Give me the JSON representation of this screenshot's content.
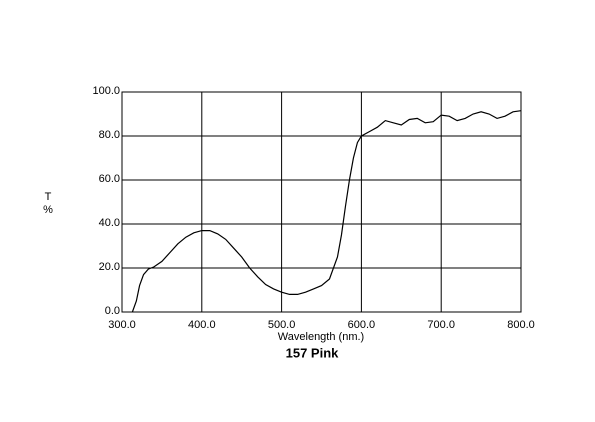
{
  "chart_data": {
    "type": "line",
    "title": "157 Pink",
    "x_label": "Wavelength (nm.)",
    "y_label": [
      "T",
      "%"
    ],
    "x": [
      313,
      318,
      322,
      327,
      333,
      340,
      350,
      360,
      370,
      380,
      390,
      400,
      410,
      420,
      430,
      440,
      450,
      460,
      470,
      480,
      490,
      500,
      510,
      520,
      530,
      540,
      550,
      560,
      570,
      575,
      580,
      585,
      590,
      595,
      600,
      610,
      620,
      630,
      640,
      650,
      660,
      670,
      680,
      690,
      700,
      710,
      720,
      730,
      740,
      750,
      760,
      770,
      780,
      790,
      800
    ],
    "series": [
      {
        "color": "#000000",
        "values": [
          0,
          5,
          12,
          17,
          19.5,
          20.5,
          23,
          27,
          31,
          34,
          36,
          37,
          37,
          35.5,
          33,
          29,
          25,
          20,
          16,
          12.5,
          10.5,
          9,
          8,
          8,
          9,
          10.5,
          12,
          15,
          25,
          35,
          48,
          60,
          70,
          77,
          80,
          82,
          84,
          87,
          86,
          85,
          87.5,
          88,
          86,
          86.5,
          89.5,
          89,
          87,
          88,
          90,
          91,
          90,
          88,
          89,
          91,
          91.5
        ]
      }
    ],
    "xlim": [
      300,
      800
    ],
    "ylim": [
      0,
      100
    ],
    "xticks": [
      {
        "value": 300,
        "label": "300.0"
      },
      {
        "value": 400,
        "label": "400.0"
      },
      {
        "value": 500,
        "label": "500.0"
      },
      {
        "value": 600,
        "label": "600.0"
      },
      {
        "value": 700,
        "label": "700.0"
      },
      {
        "value": 800,
        "label": "800.0"
      }
    ],
    "yticks": [
      {
        "value": 0,
        "label": "0.0"
      },
      {
        "value": 20,
        "label": "20.0"
      },
      {
        "value": 40,
        "label": "40.0"
      },
      {
        "value": 60,
        "label": "60.0"
      },
      {
        "value": 80,
        "label": "80.0"
      },
      {
        "value": 100,
        "label": "100.0"
      }
    ],
    "grid": true
  }
}
